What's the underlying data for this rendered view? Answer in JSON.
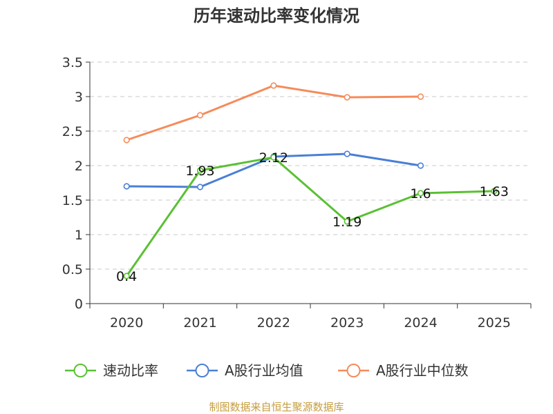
{
  "chart_data": {
    "type": "line",
    "title": "历年速动比率变化情况",
    "categories": [
      "2020",
      "2021",
      "2022",
      "2023",
      "2024",
      "2025"
    ],
    "ylim": [
      0,
      3.5
    ],
    "yticks": [
      "0",
      "0.5",
      "1",
      "1.5",
      "2",
      "2.5",
      "3",
      "3.5"
    ],
    "grid": true,
    "legend_position": "bottom",
    "series": [
      {
        "name": "速动比率",
        "color": "#5ac033",
        "values": [
          0.4,
          1.93,
          2.12,
          1.19,
          1.6,
          1.63
        ],
        "labels": [
          "0.4",
          "1.93",
          "2.12",
          "1.19",
          "1.6",
          "1.63"
        ],
        "show_labels": true
      },
      {
        "name": "A股行业均值",
        "color": "#4a7fd4",
        "values": [
          1.7,
          1.69,
          2.13,
          2.17,
          2.0,
          null
        ],
        "show_labels": false
      },
      {
        "name": "A股行业中位数",
        "color": "#f58b5a",
        "values": [
          2.37,
          2.73,
          3.16,
          2.99,
          3.0,
          null
        ],
        "show_labels": false
      }
    ]
  },
  "source_text": "制图数据来自恒生聚源数据库"
}
